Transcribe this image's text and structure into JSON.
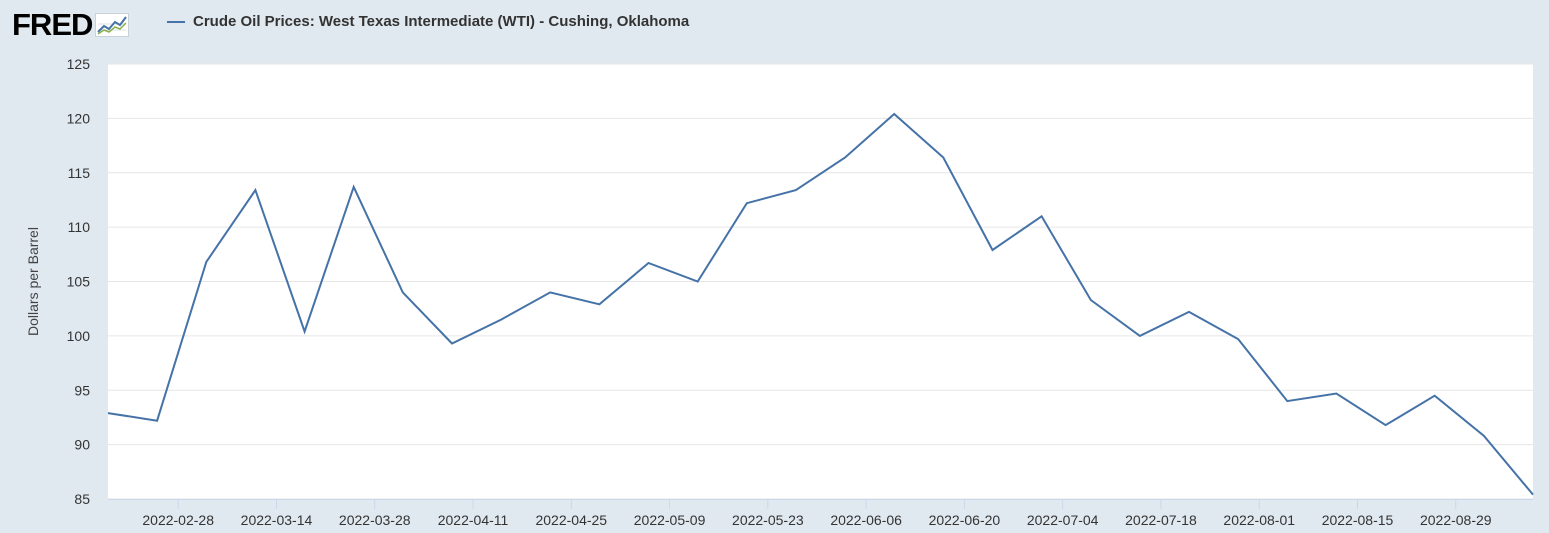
{
  "header": {
    "logo_text": "FRED",
    "logo_icon": "trend-chart-icon"
  },
  "colors": {
    "page_background": "#e1e9f0",
    "plot_background": "#ffffff",
    "series": "#4572a7",
    "gridline": "#e6e6e6"
  },
  "chart_data": {
    "type": "line",
    "title": "",
    "xlabel": "",
    "ylabel": "Dollars per Barrel",
    "ylim": [
      85,
      125
    ],
    "yticks": [
      85,
      90,
      95,
      100,
      105,
      110,
      115,
      120,
      125
    ],
    "xlim": [
      "2022-02-18",
      "2022-09-09"
    ],
    "xticks": [
      "2022-02-28",
      "2022-03-14",
      "2022-03-28",
      "2022-04-11",
      "2022-04-25",
      "2022-05-09",
      "2022-05-23",
      "2022-06-06",
      "2022-06-20",
      "2022-07-04",
      "2022-07-18",
      "2022-08-01",
      "2022-08-15",
      "2022-08-29"
    ],
    "grid": true,
    "legend_position": "top-left",
    "series": [
      {
        "name": "Crude Oil Prices: West Texas Intermediate (WTI) - Cushing, Oklahoma",
        "color": "#4572a7",
        "x": [
          "2022-02-18",
          "2022-02-25",
          "2022-03-04",
          "2022-03-11",
          "2022-03-18",
          "2022-03-25",
          "2022-04-01",
          "2022-04-08",
          "2022-04-15",
          "2022-04-22",
          "2022-04-29",
          "2022-05-06",
          "2022-05-13",
          "2022-05-20",
          "2022-05-27",
          "2022-06-03",
          "2022-06-10",
          "2022-06-17",
          "2022-06-24",
          "2022-07-01",
          "2022-07-08",
          "2022-07-15",
          "2022-07-22",
          "2022-07-29",
          "2022-08-05",
          "2022-08-12",
          "2022-08-19",
          "2022-08-26",
          "2022-09-02",
          "2022-09-09"
        ],
        "values": [
          92.9,
          92.2,
          106.8,
          113.4,
          100.4,
          113.7,
          104.0,
          99.3,
          101.5,
          104.0,
          102.9,
          106.7,
          105.0,
          112.2,
          113.4,
          116.4,
          120.4,
          116.4,
          107.9,
          111.0,
          103.3,
          100.0,
          102.2,
          99.7,
          94.0,
          94.7,
          91.8,
          94.5,
          90.8,
          85.4
        ]
      }
    ]
  }
}
